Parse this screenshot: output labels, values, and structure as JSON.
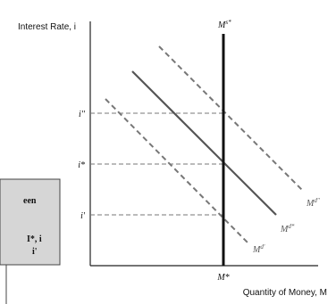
{
  "chart_data": {
    "type": "line",
    "title": "",
    "xlabel": "Quantity of Money, M",
    "ylabel": "Interest Rate, i",
    "supply_label_base": "M",
    "supply_label_sup": "s*",
    "x_tick_label": "M*",
    "y_tick_labels": [
      "i''",
      "i*",
      "i'"
    ],
    "demand_curves": [
      {
        "name": "Md'",
        "base": "M",
        "sup": "d'",
        "style": "dashed",
        "color": "#777777"
      },
      {
        "name": "Md*",
        "base": "M",
        "sup": "d*",
        "style": "solid",
        "color": "#555555"
      },
      {
        "name": "Md''",
        "base": "M",
        "sup": "d''",
        "style": "dashed",
        "color": "#777777"
      }
    ],
    "supply_color": "#111111",
    "guide_color": "#777777"
  },
  "callout": {
    "line1": "een",
    "line2": "I*, i",
    "line3": "i'"
  }
}
